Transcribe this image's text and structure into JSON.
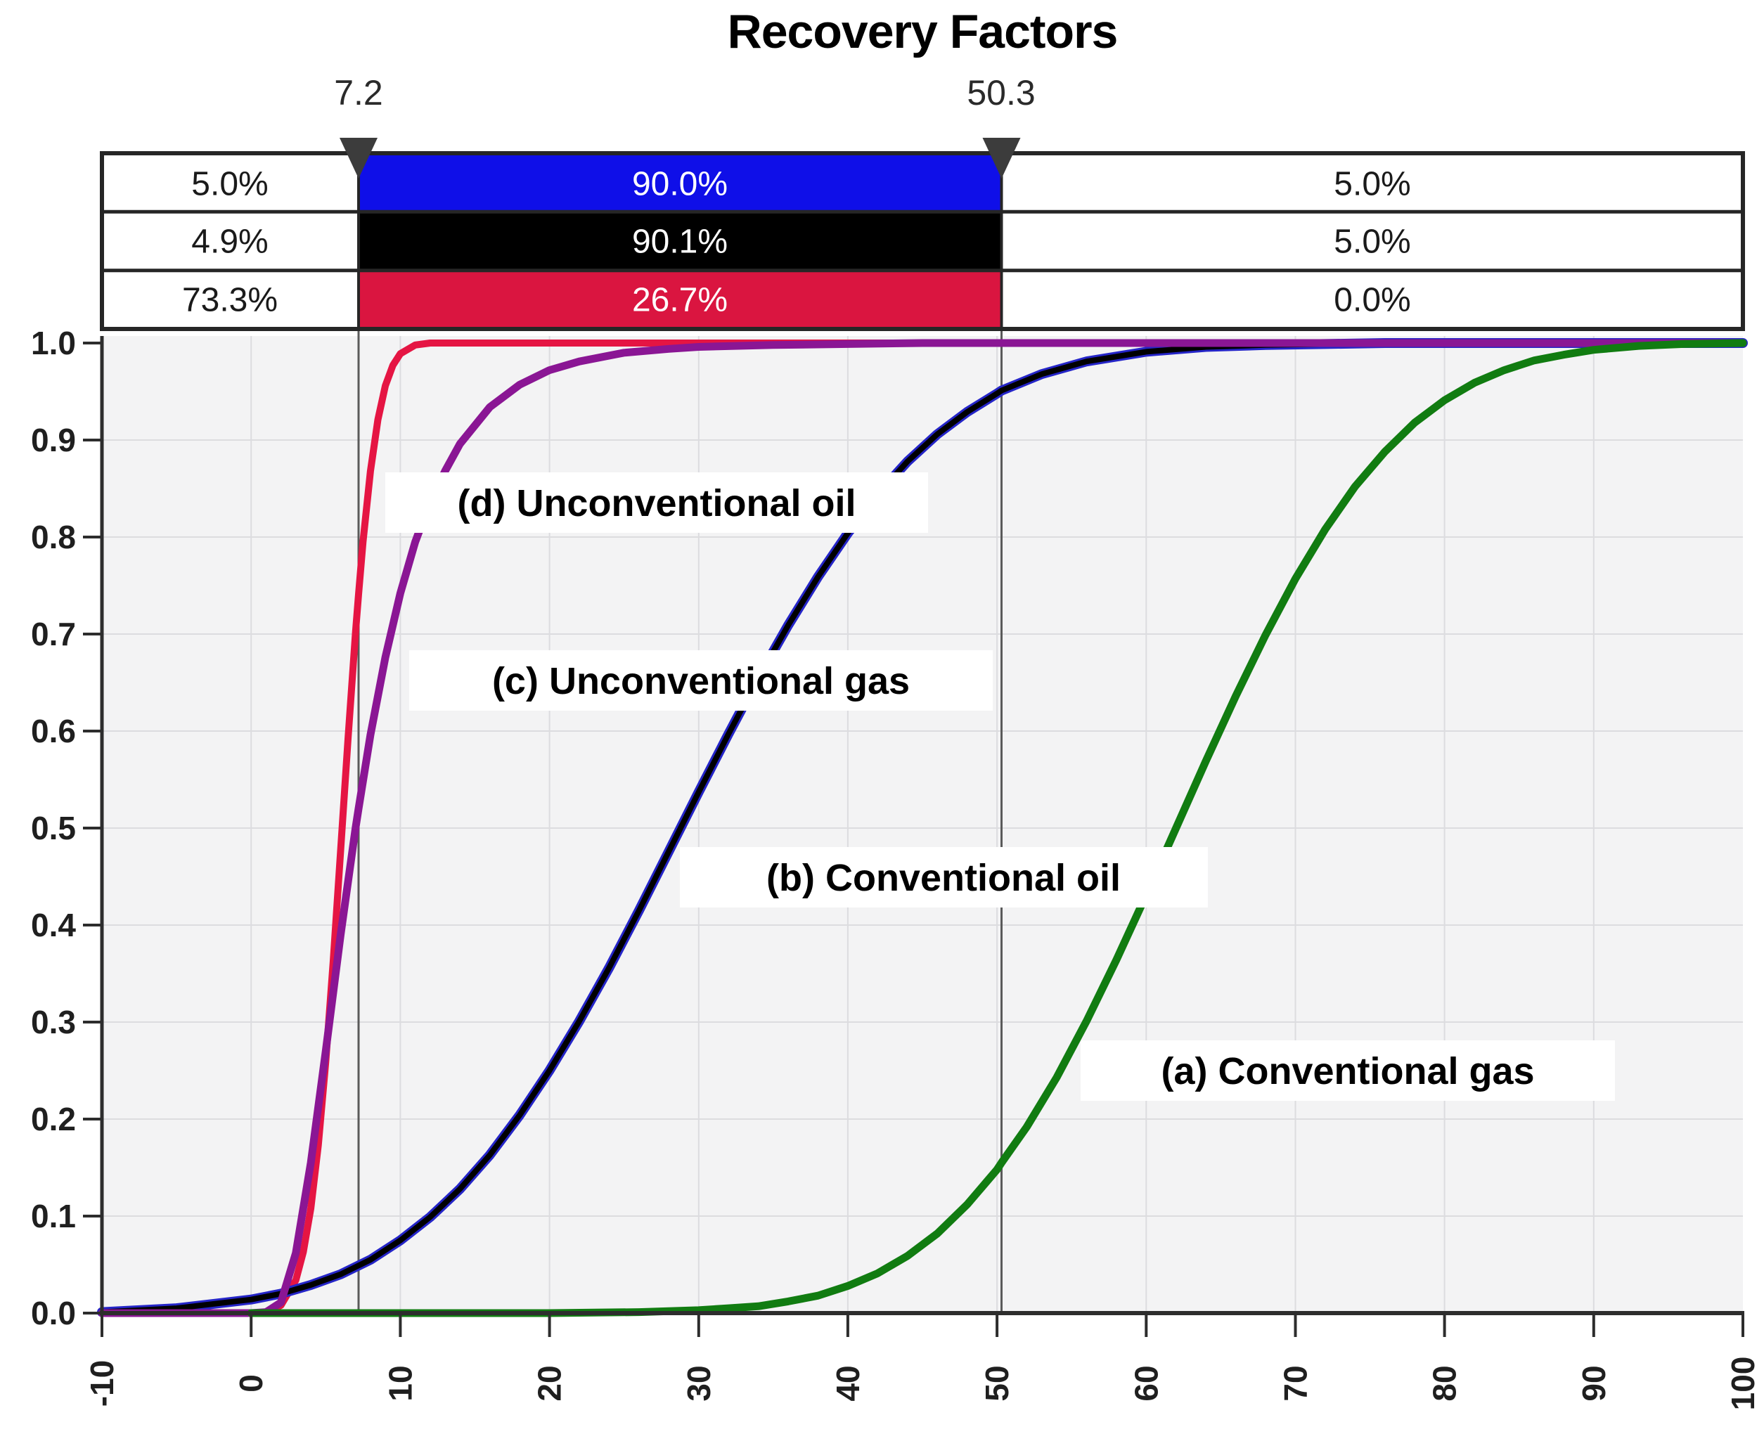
{
  "title": "Recovery Factors",
  "markers": {
    "left": {
      "label": "7.2",
      "value": 7.2
    },
    "right": {
      "label": "50.3",
      "value": 50.3
    }
  },
  "probability_table": {
    "rows": [
      {
        "band": "blue",
        "color": "#0f0fe8",
        "left": "5.0%",
        "middle": "90.0%",
        "right": "5.0%"
      },
      {
        "band": "black",
        "color": "#000000",
        "left": "4.9%",
        "middle": "90.1%",
        "right": "5.0%"
      },
      {
        "band": "red",
        "color": "#da1540",
        "left": "73.3%",
        "middle": "26.7%",
        "right": "0.0%"
      }
    ]
  },
  "axes": {
    "x_labels": [
      "-10",
      "0",
      "10",
      "20",
      "30",
      "40",
      "50",
      "60",
      "70",
      "80",
      "90",
      "100"
    ],
    "y_labels": [
      "0.0",
      "0.1",
      "0.2",
      "0.3",
      "0.4",
      "0.5",
      "0.6",
      "0.7",
      "0.8",
      "0.9",
      "1.0"
    ]
  },
  "chart_data": {
    "type": "line",
    "title": "Recovery Factors",
    "xlabel": "",
    "ylabel": "",
    "xlim": [
      -10,
      100
    ],
    "ylim": [
      0.0,
      1.0
    ],
    "x_ticks": [
      -10,
      0,
      10,
      20,
      30,
      40,
      50,
      60,
      70,
      80,
      90,
      100
    ],
    "y_ticks": [
      0.0,
      0.1,
      0.2,
      0.3,
      0.4,
      0.5,
      0.6,
      0.7,
      0.8,
      0.9,
      1.0
    ],
    "grid": true,
    "legend_position": "inline-labels",
    "delimiters": {
      "left_value": 7.2,
      "right_value": 50.3
    },
    "delimiter_probabilities": [
      {
        "series": "blue",
        "below": 0.05,
        "between": 0.9,
        "above": 0.05
      },
      {
        "series": "black",
        "below": 0.049,
        "between": 0.901,
        "above": 0.05
      },
      {
        "series": "red",
        "below": 0.733,
        "between": 0.267,
        "above": 0.0
      }
    ],
    "series": [
      {
        "name": "(a) Conventional gas",
        "color": "#117c11",
        "points": [
          [
            0,
            0
          ],
          [
            10,
            0
          ],
          [
            20,
            0
          ],
          [
            26,
            0.001
          ],
          [
            28,
            0.002
          ],
          [
            30,
            0.003
          ],
          [
            32,
            0.005
          ],
          [
            34,
            0.007
          ],
          [
            36,
            0.012
          ],
          [
            38,
            0.018
          ],
          [
            40,
            0.028
          ],
          [
            42,
            0.041
          ],
          [
            44,
            0.059
          ],
          [
            46,
            0.082
          ],
          [
            48,
            0.112
          ],
          [
            50,
            0.148
          ],
          [
            50.3,
            0.155
          ],
          [
            52,
            0.192
          ],
          [
            54,
            0.243
          ],
          [
            56,
            0.301
          ],
          [
            58,
            0.364
          ],
          [
            60,
            0.431
          ],
          [
            62,
            0.5
          ],
          [
            64,
            0.569
          ],
          [
            66,
            0.636
          ],
          [
            68,
            0.699
          ],
          [
            70,
            0.757
          ],
          [
            72,
            0.808
          ],
          [
            74,
            0.852
          ],
          [
            76,
            0.888
          ],
          [
            78,
            0.918
          ],
          [
            80,
            0.941
          ],
          [
            82,
            0.959
          ],
          [
            84,
            0.972
          ],
          [
            86,
            0.982
          ],
          [
            88,
            0.988
          ],
          [
            90,
            0.993
          ],
          [
            93,
            0.997
          ],
          [
            96,
            0.999
          ],
          [
            100,
            1.0
          ]
        ]
      },
      {
        "name": "(b) Conventional oil",
        "color": "#000000",
        "halo_color": "#2525c8",
        "points": [
          [
            -10,
            0.001
          ],
          [
            -5,
            0.005
          ],
          [
            0,
            0.014
          ],
          [
            2,
            0.02
          ],
          [
            4,
            0.029
          ],
          [
            6,
            0.04
          ],
          [
            8,
            0.055
          ],
          [
            10,
            0.075
          ],
          [
            12,
            0.099
          ],
          [
            14,
            0.128
          ],
          [
            16,
            0.163
          ],
          [
            18,
            0.204
          ],
          [
            20,
            0.25
          ],
          [
            22,
            0.301
          ],
          [
            24,
            0.356
          ],
          [
            26,
            0.415
          ],
          [
            28,
            0.476
          ],
          [
            30,
            0.537
          ],
          [
            32,
            0.597
          ],
          [
            34,
            0.655
          ],
          [
            36,
            0.709
          ],
          [
            38,
            0.759
          ],
          [
            40,
            0.804
          ],
          [
            42,
            0.844
          ],
          [
            44,
            0.878
          ],
          [
            46,
            0.906
          ],
          [
            48,
            0.929
          ],
          [
            50,
            0.948
          ],
          [
            50.3,
            0.951
          ],
          [
            53,
            0.968
          ],
          [
            56,
            0.981
          ],
          [
            60,
            0.991
          ],
          [
            64,
            0.996
          ],
          [
            68,
            0.998
          ],
          [
            72,
            0.999
          ],
          [
            76,
            1.0
          ],
          [
            100,
            1.0
          ]
        ]
      },
      {
        "name": "(c) Unconventional gas",
        "color": "#8a1694",
        "points": [
          [
            -10,
            0
          ],
          [
            0,
            0
          ],
          [
            1,
            0.001
          ],
          [
            2,
            0.011
          ],
          [
            3,
            0.062
          ],
          [
            4,
            0.155
          ],
          [
            5,
            0.27
          ],
          [
            6,
            0.39
          ],
          [
            7,
            0.5
          ],
          [
            7.2,
            0.52
          ],
          [
            8,
            0.596
          ],
          [
            9,
            0.676
          ],
          [
            10,
            0.742
          ],
          [
            11,
            0.795
          ],
          [
            12,
            0.836
          ],
          [
            13,
            0.868
          ],
          [
            14,
            0.896
          ],
          [
            16,
            0.934
          ],
          [
            18,
            0.957
          ],
          [
            20,
            0.972
          ],
          [
            22,
            0.981
          ],
          [
            25,
            0.99
          ],
          [
            28,
            0.994
          ],
          [
            30,
            0.996
          ],
          [
            35,
            0.998
          ],
          [
            40,
            0.999
          ],
          [
            45,
            1.0
          ],
          [
            100,
            1.0
          ]
        ]
      },
      {
        "name": "(d) Unconventional oil",
        "color": "#e51543",
        "points": [
          [
            -10,
            0
          ],
          [
            0,
            0
          ],
          [
            1,
            0.001
          ],
          [
            2,
            0.008
          ],
          [
            3,
            0.034
          ],
          [
            3.5,
            0.063
          ],
          [
            4,
            0.108
          ],
          [
            4.5,
            0.173
          ],
          [
            5,
            0.259
          ],
          [
            5.5,
            0.362
          ],
          [
            6,
            0.477
          ],
          [
            6.5,
            0.593
          ],
          [
            7,
            0.702
          ],
          [
            7.2,
            0.741
          ],
          [
            7.5,
            0.795
          ],
          [
            8,
            0.868
          ],
          [
            8.5,
            0.921
          ],
          [
            9,
            0.956
          ],
          [
            9.5,
            0.977
          ],
          [
            10,
            0.989
          ],
          [
            11,
            0.998
          ],
          [
            12,
            1.0
          ],
          [
            100,
            1.0
          ]
        ]
      }
    ]
  }
}
